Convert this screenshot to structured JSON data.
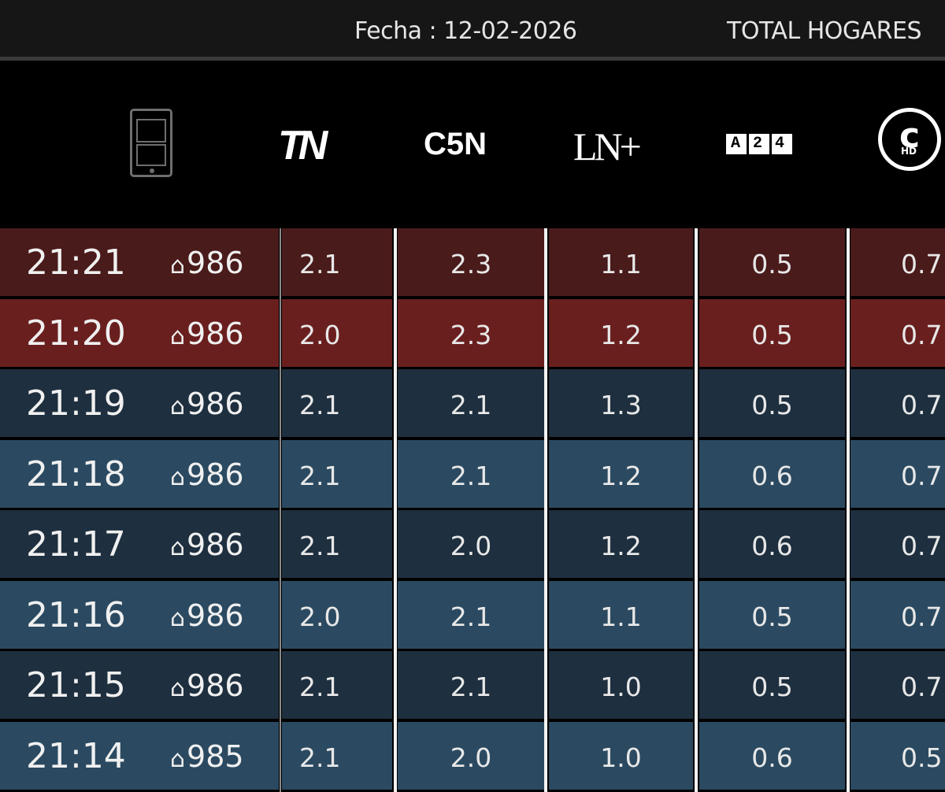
{
  "header": {
    "date_label": "Fecha : 12-02-2026",
    "scope": "TOTAL HOGARES"
  },
  "channels": [
    {
      "name": "TN",
      "logo_text": "TN"
    },
    {
      "name": "C5N",
      "logo_text": "C5N"
    },
    {
      "name": "LN+",
      "logo_text": "LN+"
    },
    {
      "name": "A24",
      "logo_text": "A24"
    },
    {
      "name": "Crónica HD",
      "logo_text": "HD"
    }
  ],
  "icons": {
    "device": "mobile-stats-icon",
    "homes": "house-icon"
  },
  "colors": {
    "highlight_dark": "#4a1b1b",
    "highlight": "#6a1f1f",
    "row_dark": "#1e2f3f",
    "row_light": "#2b4a61"
  },
  "rows": [
    {
      "time": "21:21",
      "homes": "986",
      "values": [
        "2.1",
        "2.3",
        "1.1",
        "0.5",
        "0.7"
      ],
      "style": "highlight_dark"
    },
    {
      "time": "21:20",
      "homes": "986",
      "values": [
        "2.0",
        "2.3",
        "1.2",
        "0.5",
        "0.7"
      ],
      "style": "highlight"
    },
    {
      "time": "21:19",
      "homes": "986",
      "values": [
        "2.1",
        "2.1",
        "1.3",
        "0.5",
        "0.7"
      ],
      "style": "row_dark"
    },
    {
      "time": "21:18",
      "homes": "986",
      "values": [
        "2.1",
        "2.1",
        "1.2",
        "0.6",
        "0.7"
      ],
      "style": "row_light"
    },
    {
      "time": "21:17",
      "homes": "986",
      "values": [
        "2.1",
        "2.0",
        "1.2",
        "0.6",
        "0.7"
      ],
      "style": "row_dark"
    },
    {
      "time": "21:16",
      "homes": "986",
      "values": [
        "2.0",
        "2.1",
        "1.1",
        "0.5",
        "0.7"
      ],
      "style": "row_light"
    },
    {
      "time": "21:15",
      "homes": "986",
      "values": [
        "2.1",
        "2.1",
        "1.0",
        "0.5",
        "0.7"
      ],
      "style": "row_dark"
    },
    {
      "time": "21:14",
      "homes": "985",
      "values": [
        "2.1",
        "2.0",
        "1.0",
        "0.6",
        "0.5"
      ],
      "style": "row_light"
    }
  ]
}
